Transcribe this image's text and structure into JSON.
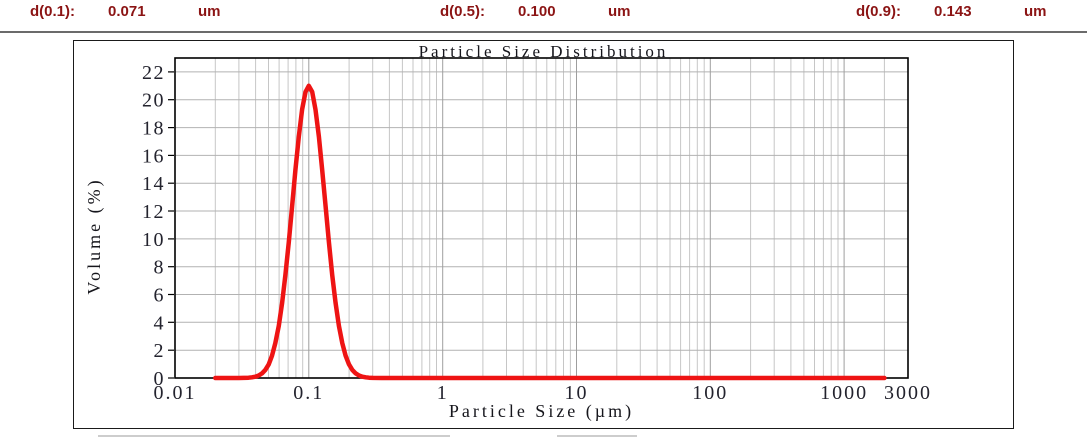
{
  "header": {
    "metrics": [
      {
        "label": "d(0.1):",
        "value": "0.071",
        "unit": "um"
      },
      {
        "label": "d(0.5):",
        "value": "0.100",
        "unit": "um"
      },
      {
        "label": "d(0.9):",
        "value": "0.143",
        "unit": "um"
      }
    ]
  },
  "colors": {
    "header_text": "#8b1414",
    "curve": "#ee1414",
    "grid_minor": "#c6c6c6",
    "grid_major": "#9e9e9e",
    "grid_horizontal": "#b2b2b2",
    "axis": "#000000",
    "tick_text": "#23232e"
  },
  "chart_data": {
    "type": "line",
    "title": "Particle Size Distribution",
    "xlabel": "Particle Size (µm)",
    "ylabel": "Volume (%)",
    "x_scale": "log",
    "xlim": [
      0.01,
      3000
    ],
    "ylim": [
      0,
      23
    ],
    "grid": true,
    "legend": "none",
    "x_tick_values": [
      0.01,
      0.1,
      1,
      10,
      100,
      1000,
      3000
    ],
    "x_tick_labels": [
      "0.01",
      "0.1",
      "1",
      "10",
      "100",
      "1000",
      "3000"
    ],
    "y_ticks": [
      0,
      2,
      4,
      6,
      8,
      10,
      12,
      14,
      16,
      18,
      20,
      22
    ],
    "peak": {
      "x": 0.1,
      "y": 21
    },
    "series": [
      {
        "name": "volume-distribution",
        "color": "#ee1414",
        "points": [
          [
            0.02,
            0
          ],
          [
            0.025,
            0
          ],
          [
            0.03,
            0
          ],
          [
            0.0355,
            0.02
          ],
          [
            0.0376,
            0.05
          ],
          [
            0.0398,
            0.09
          ],
          [
            0.0422,
            0.18
          ],
          [
            0.0447,
            0.33
          ],
          [
            0.0473,
            0.58
          ],
          [
            0.0501,
            0.98
          ],
          [
            0.0531,
            1.6
          ],
          [
            0.0562,
            2.5
          ],
          [
            0.0596,
            3.75
          ],
          [
            0.0631,
            5.38
          ],
          [
            0.0668,
            7.41
          ],
          [
            0.0708,
            9.77
          ],
          [
            0.075,
            12.34
          ],
          [
            0.0794,
            14.94
          ],
          [
            0.0841,
            17.34
          ],
          [
            0.0891,
            19.29
          ],
          [
            0.0944,
            20.56
          ],
          [
            0.1,
            21.0
          ],
          [
            0.1059,
            20.56
          ],
          [
            0.1122,
            19.29
          ],
          [
            0.1189,
            17.34
          ],
          [
            0.1259,
            14.94
          ],
          [
            0.1334,
            12.34
          ],
          [
            0.1413,
            9.77
          ],
          [
            0.1496,
            7.41
          ],
          [
            0.1585,
            5.38
          ],
          [
            0.1679,
            3.75
          ],
          [
            0.1778,
            2.5
          ],
          [
            0.1884,
            1.6
          ],
          [
            0.1995,
            0.98
          ],
          [
            0.2113,
            0.58
          ],
          [
            0.2239,
            0.33
          ],
          [
            0.2371,
            0.18
          ],
          [
            0.2512,
            0.09
          ],
          [
            0.2661,
            0.05
          ],
          [
            0.2818,
            0.02
          ],
          [
            0.3,
            0.01
          ],
          [
            0.35,
            0
          ],
          [
            0.5,
            0
          ],
          [
            1,
            0
          ],
          [
            2,
            0
          ],
          [
            5,
            0
          ],
          [
            10,
            0
          ],
          [
            20,
            0
          ],
          [
            50,
            0
          ],
          [
            100,
            0
          ],
          [
            200,
            0
          ],
          [
            500,
            0
          ],
          [
            1000,
            0
          ],
          [
            1500,
            0
          ],
          [
            2000,
            0
          ]
        ]
      }
    ]
  }
}
